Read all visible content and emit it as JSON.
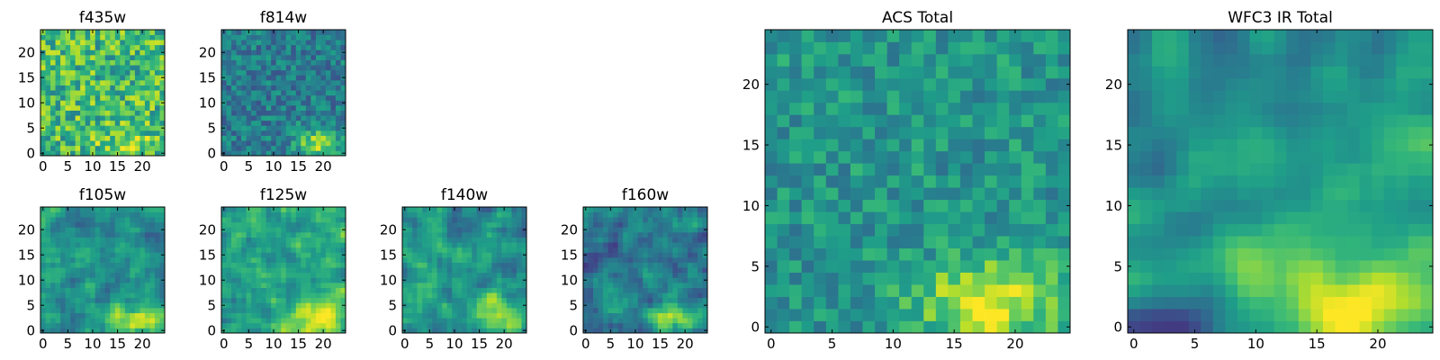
{
  "chart_data": [
    {
      "type": "heatmap",
      "title": "f435w",
      "grid_size": 25,
      "x_ticks": [
        0,
        5,
        10,
        15,
        20
      ],
      "y_ticks": [
        0,
        5,
        10,
        15,
        20
      ],
      "xlim": [
        0,
        25
      ],
      "ylim": [
        0,
        25
      ],
      "colormap": "viridis",
      "seed": 11,
      "noise": 0.9,
      "smooth": 0,
      "blob": {
        "x": 17,
        "y": 2,
        "sx": 4,
        "sy": 2,
        "amp": 0.15
      },
      "base": 0.68
    },
    {
      "type": "heatmap",
      "title": "f814w",
      "grid_size": 25,
      "x_ticks": [
        0,
        5,
        10,
        15,
        20
      ],
      "y_ticks": [
        0,
        5,
        10,
        15,
        20
      ],
      "xlim": [
        0,
        25
      ],
      "ylim": [
        0,
        25
      ],
      "colormap": "viridis",
      "seed": 23,
      "noise": 0.6,
      "smooth": 0,
      "blob": {
        "x": 19,
        "y": 2,
        "sx": 3,
        "sy": 2,
        "amp": 0.45
      },
      "base": 0.42
    },
    {
      "type": "heatmap",
      "title": "f105w",
      "grid_size": 25,
      "x_ticks": [
        0,
        5,
        10,
        15,
        20
      ],
      "y_ticks": [
        0,
        5,
        10,
        15,
        20
      ],
      "xlim": [
        0,
        25
      ],
      "ylim": [
        0,
        25
      ],
      "colormap": "viridis",
      "seed": 37,
      "noise": 0.8,
      "smooth": 1,
      "blob": {
        "x": 18,
        "y": 2,
        "sx": 4,
        "sy": 2,
        "amp": 0.45
      },
      "base": 0.5
    },
    {
      "type": "heatmap",
      "title": "f125w",
      "grid_size": 25,
      "x_ticks": [
        0,
        5,
        10,
        15,
        20
      ],
      "y_ticks": [
        0,
        5,
        10,
        15,
        20
      ],
      "xlim": [
        0,
        25
      ],
      "ylim": [
        0,
        25
      ],
      "colormap": "viridis",
      "seed": 41,
      "noise": 0.8,
      "smooth": 1,
      "blob": {
        "x": 19,
        "y": 3,
        "sx": 4,
        "sy": 3,
        "amp": 0.35
      },
      "base": 0.58
    },
    {
      "type": "heatmap",
      "title": "f140w",
      "grid_size": 25,
      "x_ticks": [
        0,
        5,
        10,
        15,
        20
      ],
      "y_ticks": [
        0,
        5,
        10,
        15,
        20
      ],
      "xlim": [
        0,
        25
      ],
      "ylim": [
        0,
        25
      ],
      "colormap": "viridis",
      "seed": 53,
      "noise": 0.8,
      "smooth": 1,
      "blob": {
        "x": 20,
        "y": 2,
        "sx": 4,
        "sy": 3,
        "amp": 0.4
      },
      "base": 0.52
    },
    {
      "type": "heatmap",
      "title": "f160w",
      "grid_size": 25,
      "x_ticks": [
        0,
        5,
        10,
        15,
        20
      ],
      "y_ticks": [
        0,
        5,
        10,
        15,
        20
      ],
      "xlim": [
        0,
        25
      ],
      "ylim": [
        0,
        25
      ],
      "colormap": "viridis",
      "seed": 67,
      "noise": 0.85,
      "smooth": 1,
      "blob": {
        "x": 18,
        "y": 2,
        "sx": 4,
        "sy": 2,
        "amp": 0.45
      },
      "base": 0.42
    },
    {
      "type": "heatmap",
      "title": "ACS Total",
      "grid_size": 25,
      "x_ticks": [
        0,
        5,
        10,
        15,
        20
      ],
      "y_ticks": [
        0,
        5,
        10,
        15,
        20
      ],
      "xlim": [
        0,
        25
      ],
      "ylim": [
        0,
        25
      ],
      "colormap": "viridis",
      "seed": 79,
      "noise": 0.55,
      "smooth": 0,
      "blob": {
        "x": 18,
        "y": 2,
        "sx": 4,
        "sy": 2.5,
        "amp": 0.45
      },
      "base": 0.52
    },
    {
      "type": "heatmap",
      "title": "WFC3 IR Total",
      "grid_size": 25,
      "x_ticks": [
        0,
        5,
        10,
        15,
        20
      ],
      "y_ticks": [
        0,
        5,
        10,
        15,
        20
      ],
      "xlim": [
        0,
        25
      ],
      "ylim": [
        0,
        25
      ],
      "colormap": "viridis",
      "seed": 97,
      "noise": 0.55,
      "smooth": 2,
      "blob": {
        "x": 18,
        "y": 2,
        "sx": 5,
        "sy": 3,
        "amp": 0.55
      },
      "base": 0.5
    }
  ]
}
